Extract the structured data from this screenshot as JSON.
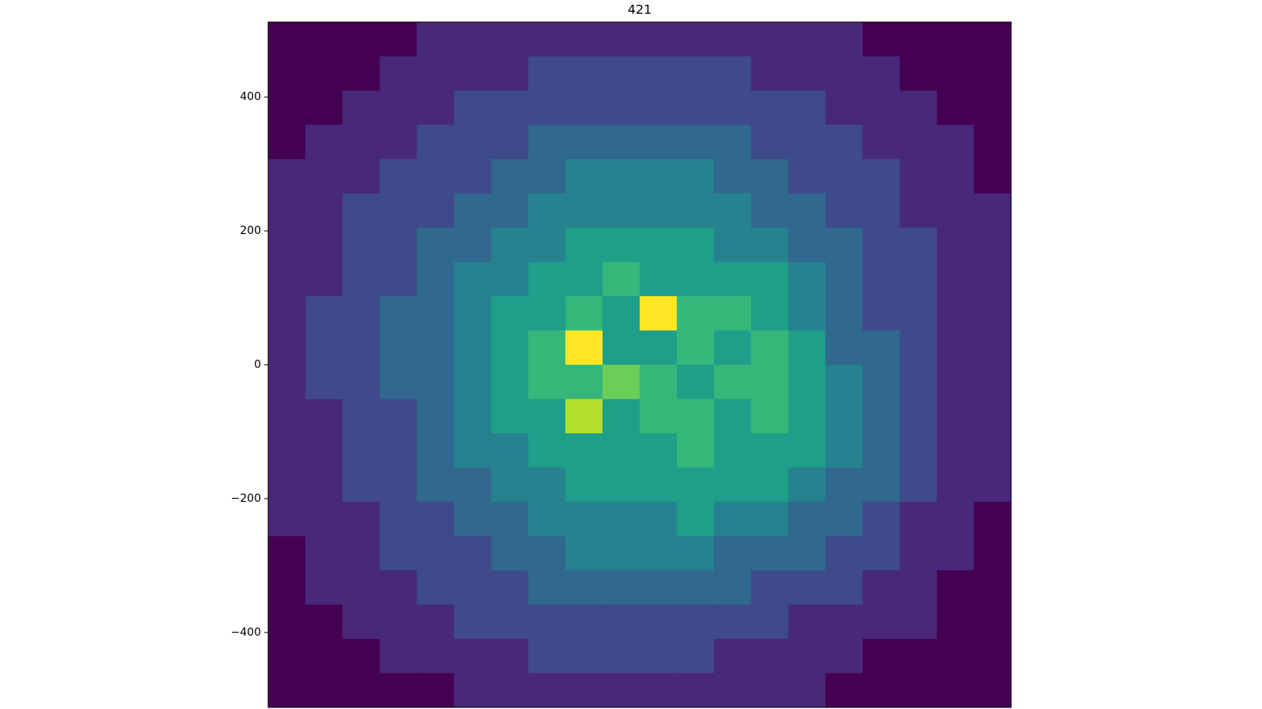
{
  "chart_data": {
    "type": "heatmap",
    "title": "421",
    "colormap": "viridis",
    "xlim": [
      -545,
      545
    ],
    "ylim": [
      -512,
      512
    ],
    "yticks": [
      {
        "value": 400,
        "label": "400"
      },
      {
        "value": 200,
        "label": "200"
      },
      {
        "value": 0,
        "label": "0"
      },
      {
        "value": -200,
        "label": "−200"
      },
      {
        "value": -400,
        "label": "−400"
      }
    ],
    "values": [
      [
        0,
        0,
        0,
        0,
        1,
        1,
        1,
        1,
        1,
        1,
        1,
        1,
        1,
        1,
        1,
        1,
        0,
        0,
        0,
        0
      ],
      [
        0,
        0,
        0,
        1,
        1,
        1,
        1,
        2,
        2,
        2,
        2,
        2,
        2,
        1,
        1,
        1,
        1,
        0,
        0,
        0
      ],
      [
        0,
        0,
        1,
        1,
        1,
        2,
        2,
        2,
        2,
        2,
        2,
        2,
        2,
        2,
        2,
        1,
        1,
        1,
        0,
        0
      ],
      [
        0,
        1,
        1,
        1,
        2,
        2,
        2,
        3,
        3,
        3,
        3,
        3,
        3,
        2,
        2,
        2,
        1,
        1,
        1,
        0
      ],
      [
        1,
        1,
        1,
        2,
        2,
        2,
        3,
        3,
        4,
        4,
        4,
        4,
        3,
        3,
        2,
        2,
        2,
        1,
        1,
        0
      ],
      [
        1,
        1,
        2,
        2,
        2,
        3,
        3,
        4,
        4,
        4,
        4,
        4,
        4,
        3,
        3,
        2,
        2,
        1,
        1,
        1
      ],
      [
        1,
        1,
        2,
        2,
        3,
        3,
        4,
        4,
        5,
        5,
        5,
        5,
        4,
        4,
        3,
        3,
        2,
        2,
        1,
        1
      ],
      [
        1,
        1,
        2,
        2,
        3,
        4,
        4,
        5,
        5,
        6,
        5,
        5,
        5,
        5,
        4,
        3,
        2,
        2,
        1,
        1
      ],
      [
        1,
        2,
        2,
        3,
        3,
        4,
        5,
        5,
        6,
        5,
        9,
        6,
        6,
        5,
        4,
        3,
        2,
        2,
        1,
        1
      ],
      [
        1,
        2,
        2,
        3,
        3,
        4,
        5,
        6,
        9,
        5,
        5,
        6,
        5,
        6,
        5,
        3,
        3,
        2,
        1,
        1
      ],
      [
        1,
        2,
        2,
        3,
        3,
        4,
        5,
        6,
        6,
        7,
        6,
        5,
        6,
        6,
        5,
        4,
        3,
        2,
        1,
        1
      ],
      [
        1,
        1,
        2,
        2,
        3,
        4,
        5,
        5,
        8,
        5,
        6,
        6,
        5,
        6,
        5,
        4,
        3,
        2,
        1,
        1
      ],
      [
        1,
        1,
        2,
        2,
        3,
        4,
        4,
        5,
        5,
        5,
        5,
        6,
        5,
        5,
        5,
        4,
        3,
        2,
        1,
        1
      ],
      [
        1,
        1,
        2,
        2,
        3,
        3,
        4,
        4,
        5,
        5,
        5,
        5,
        5,
        5,
        4,
        3,
        3,
        2,
        1,
        1
      ],
      [
        1,
        1,
        1,
        2,
        2,
        3,
        3,
        4,
        4,
        4,
        4,
        5,
        4,
        4,
        3,
        3,
        2,
        1,
        1,
        0
      ],
      [
        0,
        1,
        1,
        2,
        2,
        2,
        3,
        3,
        4,
        4,
        4,
        4,
        3,
        3,
        3,
        2,
        2,
        1,
        1,
        0
      ],
      [
        0,
        1,
        1,
        1,
        2,
        2,
        2,
        3,
        3,
        3,
        3,
        3,
        3,
        2,
        2,
        2,
        1,
        1,
        0,
        0
      ],
      [
        0,
        0,
        1,
        1,
        1,
        2,
        2,
        2,
        2,
        2,
        2,
        2,
        2,
        2,
        1,
        1,
        1,
        1,
        0,
        0
      ],
      [
        0,
        0,
        0,
        1,
        1,
        1,
        1,
        2,
        2,
        2,
        2,
        2,
        1,
        1,
        1,
        1,
        0,
        0,
        0,
        0
      ],
      [
        0,
        0,
        0,
        0,
        0,
        1,
        1,
        1,
        1,
        1,
        1,
        1,
        1,
        1,
        1,
        0,
        0,
        0,
        0,
        0
      ]
    ]
  }
}
